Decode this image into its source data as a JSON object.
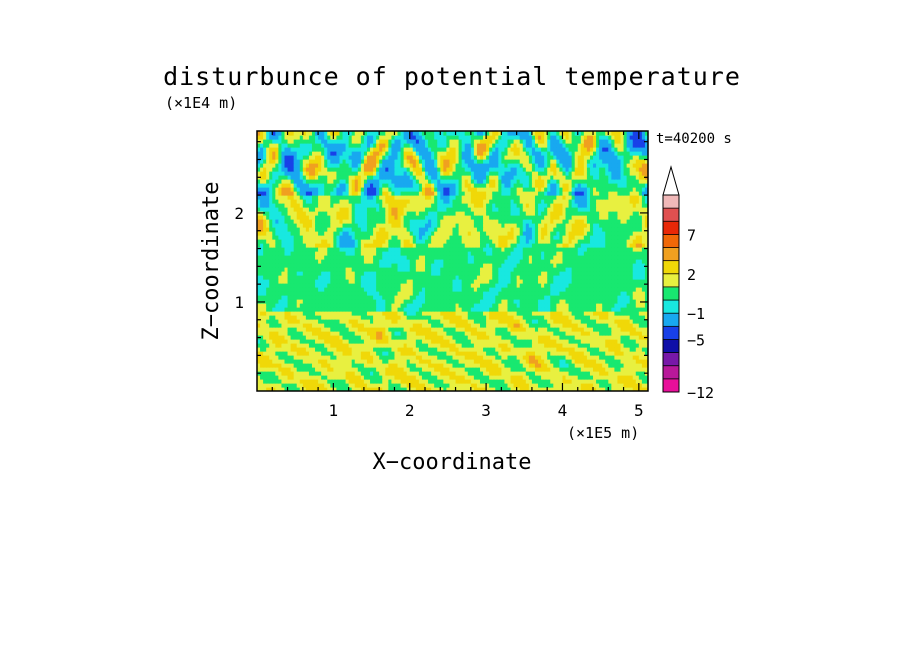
{
  "chart_data": {
    "type": "heatmap",
    "title": "disturbunce of potential temperature",
    "xlabel": "X−coordinate",
    "ylabel": "Z−coordinate",
    "x_unit": "(×1E5 m)",
    "y_unit": "(×1E4 m)",
    "time_label": "t=40200 s",
    "xlim": [
      0,
      5.12
    ],
    "ylim": [
      0,
      2.92
    ],
    "x_ticks": [
      1,
      2,
      3,
      4,
      5
    ],
    "y_ticks": [
      1,
      2
    ],
    "colorbar": {
      "levels": [
        -12,
        -11,
        -9,
        -7,
        -5,
        -3,
        -1,
        0,
        1,
        2,
        3,
        5,
        7,
        9,
        11
      ],
      "labels": [
        "−12",
        "−5",
        "−1",
        "2",
        "7"
      ],
      "label_values": [
        -12,
        -5,
        -1,
        2,
        7
      ],
      "colors": [
        "#e8109a",
        "#b8189a",
        "#7818a8",
        "#1010a8",
        "#1840e8",
        "#18a8f0",
        "#18e8e0",
        "#18e870",
        "#e8f040",
        "#f0d808",
        "#f0a020",
        "#f06808",
        "#e82808",
        "#e05050",
        "#f0b8b8"
      ],
      "extend_max": true
    },
    "layers": [
      {
        "range": [
          0.0,
          0.9
        ],
        "value": 1.5,
        "description_value": "yellow band near surface"
      },
      {
        "range": [
          0.9,
          1.6
        ],
        "value": 0.5
      },
      {
        "range": [
          1.6,
          2.2
        ],
        "value": 1.0
      },
      {
        "range": [
          2.2,
          2.92
        ],
        "value": 0.0
      }
    ]
  }
}
